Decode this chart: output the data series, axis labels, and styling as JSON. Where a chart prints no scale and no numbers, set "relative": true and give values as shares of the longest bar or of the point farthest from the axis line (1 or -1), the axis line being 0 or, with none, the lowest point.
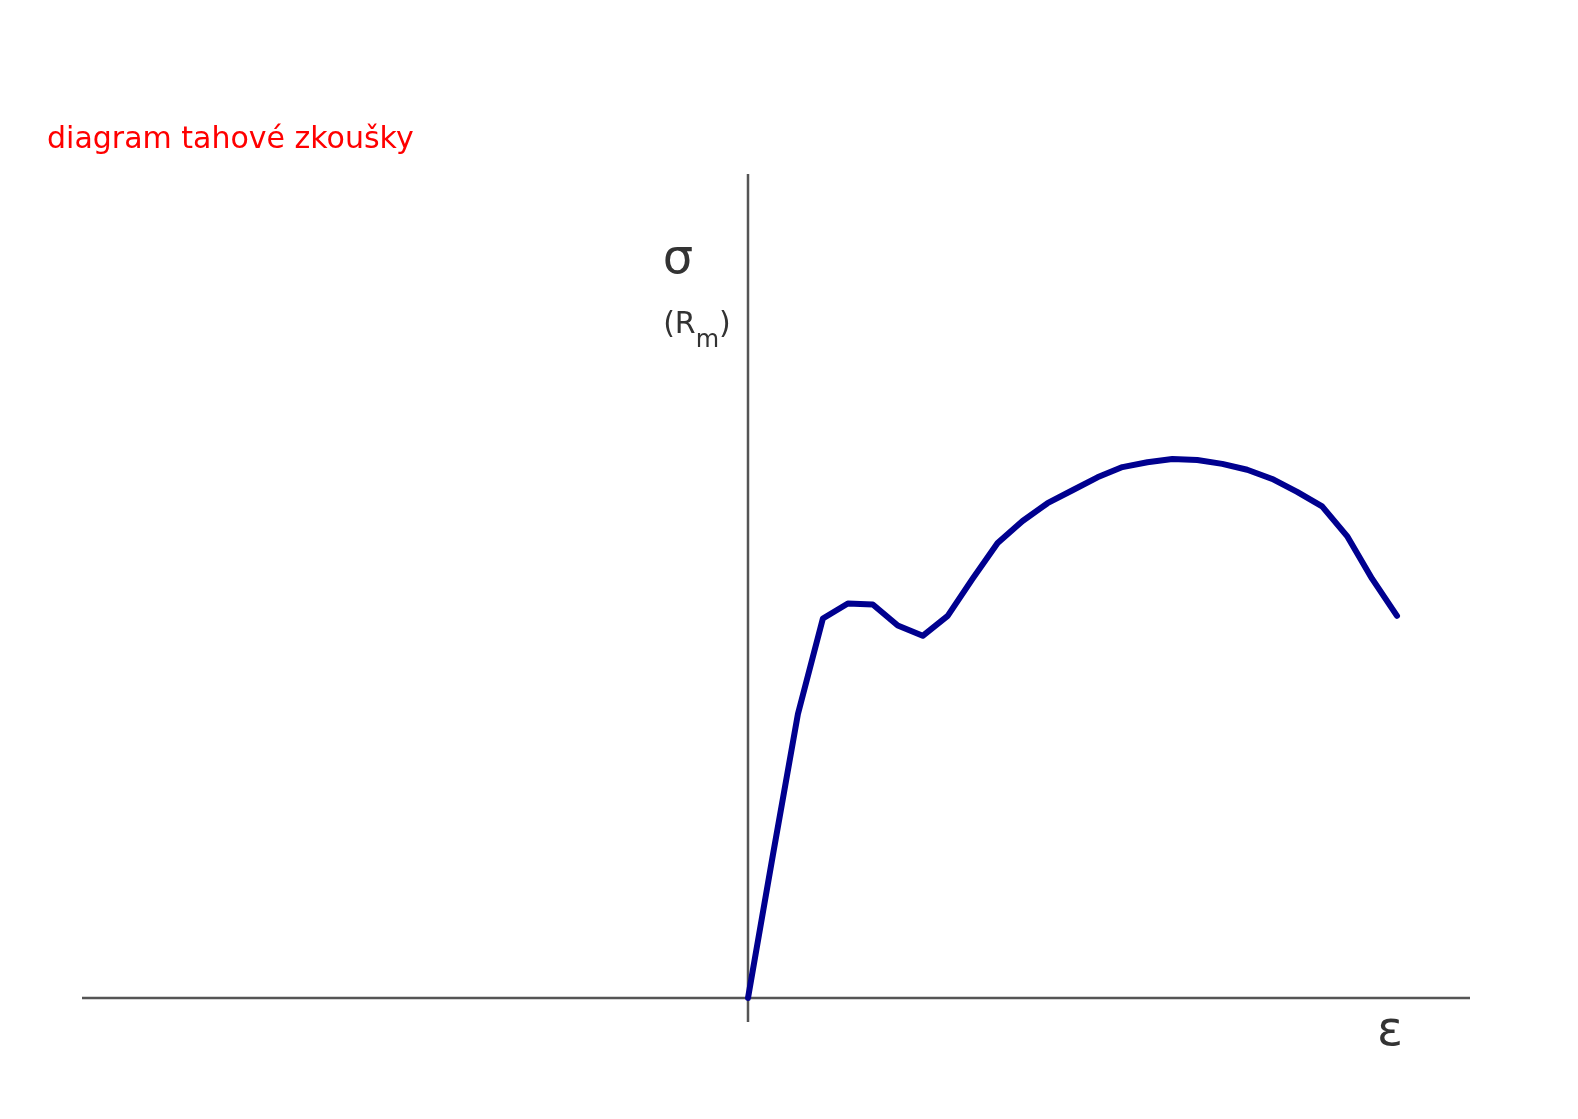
{
  "chart_data": {
    "type": "line",
    "title": "diagram tahové zkoušky",
    "xlabel": "ε",
    "ylabel": "σ",
    "annotations": [
      "(R$_{m}$)"
    ],
    "relative": true,
    "categories": [
      null,
      null,
      null,
      null,
      null,
      null,
      null,
      null,
      null,
      null,
      null,
      null,
      null,
      null,
      null,
      null,
      null,
      null,
      null,
      null,
      null,
      null,
      null,
      null,
      null,
      null,
      null
    ],
    "series": [
      {
        "color": "#00008f",
        "values": [
          0,
          0.266,
          0.527,
          0.704,
          0.732,
          0.73,
          0.691,
          0.672,
          0.709,
          0.778,
          0.844,
          0.885,
          0.918,
          0.942,
          0.966,
          0.985,
          0.994,
          1,
          0.998,
          0.991,
          0.98,
          0.963,
          0.939,
          0.912,
          0.857,
          0.778,
          0.709
        ]
      }
    ],
    "marker": "none",
    "line_style": "solid"
  }
}
